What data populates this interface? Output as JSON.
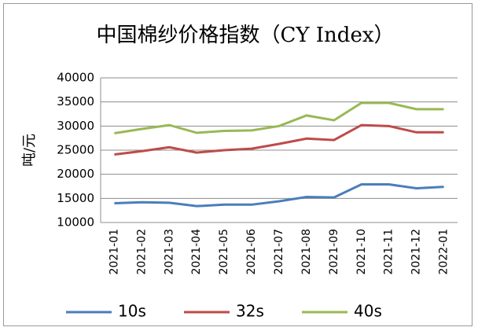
{
  "chart_data": {
    "type": "line",
    "title": "中国棉纱价格指数（CY Index）",
    "y_label": "吨/元",
    "categories": [
      "2021-01",
      "2021-02",
      "2021-03",
      "2021-04",
      "2021-05",
      "2021-06",
      "2021-07",
      "2021-08",
      "2021-09",
      "2021-10",
      "2021-11",
      "2021-12",
      "2022-01"
    ],
    "series": [
      {
        "name": "10s",
        "color": "#4a7ebb",
        "values": [
          14000,
          14200,
          14100,
          13400,
          13700,
          13700,
          14400,
          15300,
          15200,
          17900,
          17900,
          17100,
          17400
        ]
      },
      {
        "name": "32s",
        "color": "#be4b48",
        "values": [
          24100,
          24800,
          25600,
          24500,
          25000,
          25300,
          26300,
          27400,
          27100,
          30200,
          30000,
          28700,
          28700
        ]
      },
      {
        "name": "40s",
        "color": "#98b954",
        "values": [
          28500,
          29400,
          30200,
          28600,
          29000,
          29100,
          30000,
          32200,
          31200,
          34800,
          34800,
          33500,
          33500
        ]
      }
    ],
    "ylim": [
      10000,
      40000
    ],
    "yticks": [
      10000,
      15000,
      20000,
      25000,
      30000,
      35000,
      40000
    ],
    "grid": true,
    "legend": "bottom"
  }
}
